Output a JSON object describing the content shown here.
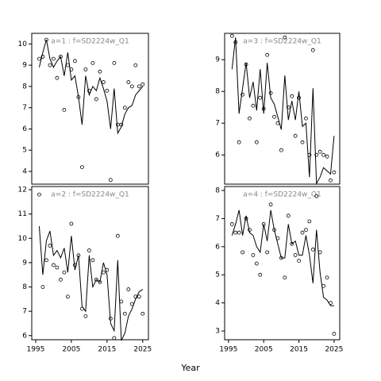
{
  "x_label": "Year",
  "chart_data": [
    {
      "type": "line",
      "title": "a=1 : f=SD2224w_Q1",
      "x": [
        1996,
        1997,
        1998,
        1999,
        2000,
        2001,
        2002,
        2003,
        2004,
        2005,
        2006,
        2007,
        2008,
        2009,
        2010,
        2011,
        2012,
        2013,
        2014,
        2015,
        2016,
        2017,
        2018,
        2019,
        2020,
        2021,
        2022,
        2023,
        2024,
        2025
      ],
      "series": [
        {
          "style": "line",
          "color": "#000000",
          "values": [
            8.9,
            9.6,
            10.2,
            9.3,
            8.9,
            9.2,
            9.4,
            8.5,
            9.6,
            8.3,
            8.5,
            7.5,
            6.2,
            8.5,
            7.6,
            8.0,
            7.8,
            8.4,
            7.9,
            7.3,
            6.0,
            7.9,
            5.8,
            6.1,
            6.7,
            7.0,
            7.1,
            7.6,
            7.8,
            8.0
          ]
        },
        {
          "style": "points",
          "color": "#000000",
          "values": [
            9.3,
            9.4,
            10.2,
            9.0,
            9.3,
            8.4,
            9.4,
            6.9,
            9.0,
            8.8,
            9.2,
            7.5,
            4.2,
            8.8,
            7.8,
            9.1,
            7.4,
            8.7,
            8.2,
            7.8,
            3.6,
            9.1,
            6.2,
            6.2,
            7.0,
            8.2,
            8.0,
            9.0,
            8.0,
            8.1
          ]
        }
      ],
      "xlim": [
        1993.9,
        2026.6
      ],
      "ylim": [
        3.4,
        10.5
      ],
      "yticks": [
        4,
        5,
        6,
        7,
        8,
        9,
        10
      ]
    },
    {
      "type": "line",
      "title": "a=3 : f=SD2224w_Q1",
      "x": [
        1996,
        1997,
        1998,
        1999,
        2000,
        2001,
        2002,
        2003,
        2004,
        2005,
        2006,
        2007,
        2008,
        2009,
        2010,
        2011,
        2012,
        2013,
        2014,
        2015,
        2016,
        2017,
        2018,
        2019,
        2020,
        2021,
        2022,
        2023,
        2024,
        2025
      ],
      "series": [
        {
          "style": "line",
          "color": "#000000",
          "values": [
            8.7,
            9.7,
            7.3,
            8.1,
            8.9,
            7.8,
            8.3,
            7.4,
            8.7,
            7.3,
            8.9,
            7.8,
            7.6,
            7.2,
            6.8,
            8.5,
            7.1,
            7.7,
            7.1,
            8.0,
            6.9,
            7.0,
            5.3,
            8.1,
            5.1,
            5.3,
            5.6,
            5.5,
            5.4,
            6.6
          ]
        },
        {
          "style": "points",
          "color": "#000000",
          "values": [
            9.75,
            9.55,
            6.4,
            7.9,
            8.85,
            7.15,
            7.55,
            6.4,
            7.8,
            7.45,
            9.15,
            7.95,
            7.2,
            7.0,
            6.15,
            9.7,
            7.5,
            7.85,
            6.6,
            7.8,
            6.4,
            7.15,
            6.0,
            9.3,
            6.0,
            6.1,
            6.0,
            5.95,
            5.2,
            5.45
          ]
        }
      ],
      "xlim": [
        1993.9,
        2026.6
      ],
      "ylim": [
        5.08,
        9.83
      ],
      "yticks": [
        6,
        7,
        8,
        9
      ]
    },
    {
      "type": "line",
      "title": "a=2 : f=SD2224w_Q1",
      "x": [
        1996,
        1997,
        1998,
        1999,
        2000,
        2001,
        2002,
        2003,
        2004,
        2005,
        2006,
        2007,
        2008,
        2009,
        2010,
        2011,
        2012,
        2013,
        2014,
        2015,
        2016,
        2017,
        2018,
        2019,
        2020,
        2021,
        2022,
        2023,
        2024,
        2025
      ],
      "series": [
        {
          "style": "line",
          "color": "#000000",
          "values": [
            10.5,
            8.5,
            9.9,
            10.3,
            9.3,
            9.5,
            9.2,
            9.6,
            8.6,
            10.1,
            8.7,
            9.3,
            7.2,
            7.0,
            9.3,
            8.0,
            8.3,
            8.2,
            9.0,
            8.5,
            6.5,
            6.2,
            9.1,
            5.8,
            6.1,
            6.8,
            7.1,
            7.5,
            7.8,
            7.9
          ]
        },
        {
          "style": "points",
          "color": "#000000",
          "values": [
            11.8,
            8.0,
            9.1,
            9.7,
            8.9,
            8.8,
            8.3,
            8.6,
            7.6,
            10.6,
            8.9,
            9.3,
            7.1,
            6.8,
            9.5,
            9.1,
            8.3,
            8.2,
            8.6,
            8.7,
            6.7,
            5.9,
            10.1,
            7.4,
            6.9,
            7.9,
            7.3,
            7.6,
            7.6,
            6.9
          ]
        }
      ],
      "xlim": [
        1993.9,
        2026.6
      ],
      "ylim": [
        5.83,
        12.13
      ],
      "yticks": [
        6,
        7,
        8,
        9,
        10,
        11,
        12
      ],
      "xticks": [
        1995,
        2005,
        2015,
        2025
      ]
    },
    {
      "type": "line",
      "title": "a=4 : f=SD2224w_Q1",
      "x": [
        1996,
        1997,
        1998,
        1999,
        2000,
        2001,
        2002,
        2003,
        2004,
        2005,
        2006,
        2007,
        2008,
        2009,
        2010,
        2011,
        2012,
        2013,
        2014,
        2015,
        2016,
        2017,
        2018,
        2019,
        2020,
        2021,
        2022,
        2023,
        2024,
        2025
      ],
      "series": [
        {
          "style": "line",
          "color": "#000000",
          "values": [
            6.4,
            6.8,
            7.3,
            6.4,
            7.1,
            6.5,
            6.4,
            6.0,
            5.8,
            6.8,
            6.2,
            7.3,
            6.6,
            6.1,
            5.6,
            5.6,
            6.8,
            6.1,
            6.2,
            5.7,
            5.7,
            6.4,
            5.7,
            4.7,
            6.6,
            5.1,
            4.2,
            4.1,
            3.9,
            3.9
          ]
        },
        {
          "style": "points",
          "color": "#000000",
          "values": [
            6.8,
            6.5,
            6.5,
            5.8,
            7.0,
            6.6,
            5.7,
            5.4,
            5.0,
            6.8,
            5.8,
            7.5,
            6.6,
            6.3,
            5.6,
            4.9,
            7.1,
            6.1,
            5.7,
            5.5,
            6.5,
            6.6,
            6.9,
            5.9,
            7.8,
            5.8,
            4.6,
            4.9,
            4.0,
            2.9
          ]
        }
      ],
      "xlim": [
        1993.9,
        2026.6
      ],
      "ylim": [
        2.69,
        8.14
      ],
      "yticks": [
        3,
        4,
        5,
        6,
        7,
        8
      ],
      "xticks": [
        1995,
        2005,
        2015,
        2025
      ]
    }
  ]
}
